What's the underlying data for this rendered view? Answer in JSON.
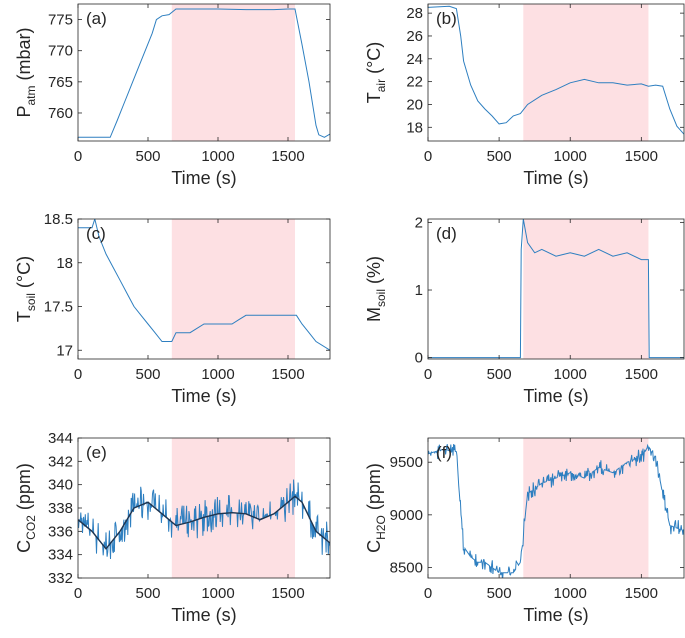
{
  "figure": {
    "panel_labels": [
      "(a)",
      "(b)",
      "(c)",
      "(d)",
      "(e)",
      "(f)"
    ],
    "xlabel": "Time (s)",
    "shaded_interval": [
      670,
      1550
    ],
    "colors": {
      "line": "#2e7fc0",
      "smooth": "#1f3550",
      "shade": "#fde0e3",
      "axis": "#262626"
    }
  },
  "chart_data": [
    {
      "type": "line",
      "panel": "(a)",
      "ylabel": {
        "base": "P",
        "sub": "atm",
        "unit": " (mbar)"
      },
      "xlabel": "Time (s)",
      "xlim": [
        0,
        1800
      ],
      "ylim": [
        755.5,
        777.5
      ],
      "xticks": [
        0,
        500,
        1000,
        1500
      ],
      "yticks": [
        760,
        765,
        770,
        775
      ],
      "shaded": [
        670,
        1550
      ],
      "grid": false,
      "series": [
        {
          "x": [
            0,
            230,
            280,
            330,
            380,
            430,
            480,
            530,
            560,
            600,
            650,
            700,
            800,
            1000,
            1200,
            1400,
            1500,
            1550,
            1600,
            1650,
            1700,
            1720,
            1760,
            1800
          ],
          "y": [
            756.1,
            756.1,
            758.8,
            761.6,
            764.4,
            767.2,
            770,
            772.8,
            775,
            775.6,
            775.8,
            776.7,
            776.7,
            776.7,
            776.6,
            776.6,
            776.7,
            776.7,
            771,
            765,
            758,
            756.5,
            756.1,
            756.6
          ]
        }
      ]
    },
    {
      "type": "line",
      "panel": "(b)",
      "ylabel": {
        "base": "T",
        "sub": "air",
        "unit": " (°C)"
      },
      "xlabel": "Time (s)",
      "xlim": [
        0,
        1800
      ],
      "ylim": [
        16.8,
        28.8
      ],
      "xticks": [
        0,
        500,
        1000,
        1500
      ],
      "yticks": [
        18,
        20,
        22,
        24,
        26,
        28
      ],
      "shaded": [
        670,
        1550
      ],
      "grid": false,
      "series": [
        {
          "x": [
            0,
            150,
            200,
            230,
            250,
            300,
            350,
            400,
            450,
            500,
            550,
            600,
            650,
            700,
            800,
            900,
            1000,
            1100,
            1200,
            1300,
            1400,
            1500,
            1550,
            1600,
            1650,
            1700,
            1750,
            1800
          ],
          "y": [
            28.5,
            28.6,
            28.4,
            26,
            23.8,
            21.7,
            20.3,
            19.6,
            19,
            18.3,
            18.4,
            19,
            19.2,
            20,
            20.8,
            21.3,
            21.9,
            22.2,
            21.9,
            21.9,
            21.7,
            21.8,
            21.6,
            21.7,
            21.6,
            19.6,
            18.1,
            17.4
          ]
        }
      ]
    },
    {
      "type": "line",
      "panel": "(c)",
      "ylabel": {
        "base": "T",
        "sub": "soil",
        "unit": " (°C)"
      },
      "xlabel": "Time (s)",
      "xlim": [
        0,
        1800
      ],
      "ylim": [
        16.9,
        18.5
      ],
      "xticks": [
        0,
        500,
        1000,
        1500
      ],
      "yticks": [
        17,
        17.5,
        18,
        18.5
      ],
      "shaded": [
        670,
        1550
      ],
      "grid": false,
      "series": [
        {
          "x": [
            0,
            100,
            120,
            150,
            200,
            250,
            300,
            350,
            400,
            450,
            500,
            550,
            600,
            670,
            700,
            800,
            900,
            1000,
            1100,
            1150,
            1200,
            1300,
            1400,
            1500,
            1560,
            1600,
            1650,
            1700,
            1800
          ],
          "y": [
            18.4,
            18.4,
            18.5,
            18.3,
            18.1,
            17.95,
            17.8,
            17.65,
            17.5,
            17.4,
            17.3,
            17.2,
            17.1,
            17.1,
            17.2,
            17.2,
            17.3,
            17.3,
            17.3,
            17.35,
            17.4,
            17.4,
            17.4,
            17.4,
            17.4,
            17.3,
            17.2,
            17.1,
            17
          ]
        }
      ]
    },
    {
      "type": "line",
      "panel": "(d)",
      "ylabel": {
        "base": "M",
        "sub": "soil",
        "unit": " (%)"
      },
      "xlabel": "Time (s)",
      "xlim": [
        0,
        1800
      ],
      "ylim": [
        -0.02,
        2.05
      ],
      "xticks": [
        0,
        500,
        1000,
        1500
      ],
      "yticks": [
        0,
        1,
        2
      ],
      "shaded": [
        670,
        1550
      ],
      "grid": false,
      "series": [
        {
          "x": [
            0,
            300,
            600,
            650,
            655,
            670,
            700,
            750,
            800,
            900,
            1000,
            1100,
            1200,
            1300,
            1400,
            1500,
            1550,
            1555,
            1600,
            1800
          ],
          "y": [
            0,
            0,
            0,
            0,
            1.6,
            2.05,
            1.7,
            1.55,
            1.6,
            1.5,
            1.55,
            1.5,
            1.6,
            1.5,
            1.55,
            1.45,
            1.45,
            0,
            0,
            0
          ]
        }
      ]
    },
    {
      "type": "line",
      "panel": "(e)",
      "ylabel": {
        "base": "C",
        "sub": "CO2",
        "unit": " (ppm)"
      },
      "xlabel": "Time (s)",
      "xlim": [
        0,
        1800
      ],
      "ylim": [
        332,
        344
      ],
      "xticks": [
        0,
        500,
        1000,
        1500
      ],
      "yticks": [
        332,
        334,
        336,
        338,
        340,
        342,
        344
      ],
      "shaded": [
        670,
        1550
      ],
      "grid": false,
      "series": [
        {
          "name": "raw",
          "noise": 1.6,
          "x": [
            0,
            100,
            200,
            300,
            400,
            500,
            600,
            700,
            800,
            900,
            1000,
            1100,
            1200,
            1300,
            1400,
            1500,
            1550,
            1600,
            1700,
            1800
          ],
          "y": [
            337,
            336,
            334.5,
            336,
            338,
            338.5,
            337.5,
            336.5,
            336.8,
            337.2,
            337.5,
            337.6,
            337.5,
            337,
            337.5,
            338.5,
            339,
            338.5,
            336,
            335
          ]
        },
        {
          "name": "smoothed",
          "x": [
            0,
            100,
            200,
            300,
            400,
            500,
            600,
            700,
            800,
            900,
            1000,
            1100,
            1200,
            1300,
            1400,
            1500,
            1550,
            1600,
            1700,
            1800
          ],
          "y": [
            337,
            336,
            334.5,
            336,
            338,
            338.5,
            337.5,
            336.5,
            336.8,
            337.2,
            337.5,
            337.6,
            337.5,
            337,
            337.5,
            338.5,
            339,
            338.5,
            336,
            335
          ]
        }
      ]
    },
    {
      "type": "line",
      "panel": "(f)",
      "ylabel": {
        "base": "C",
        "sub": "H2O",
        "unit": " (ppm)"
      },
      "xlabel": "Time (s)",
      "xlim": [
        0,
        1800
      ],
      "ylim": [
        8400,
        9730
      ],
      "xticks": [
        0,
        500,
        1000,
        1500
      ],
      "yticks": [
        8500,
        9000,
        9500
      ],
      "shaded": [
        670,
        1550
      ],
      "grid": false,
      "series": [
        {
          "noise": 80,
          "x": [
            0,
            100,
            200,
            220,
            250,
            300,
            350,
            400,
            450,
            500,
            550,
            600,
            650,
            700,
            800,
            900,
            1000,
            1100,
            1200,
            1300,
            1400,
            1500,
            1550,
            1600,
            1650,
            1700,
            1800
          ],
          "y": [
            9580,
            9620,
            9600,
            9200,
            8700,
            8600,
            8550,
            8550,
            8500,
            8450,
            8450,
            8450,
            8550,
            9200,
            9300,
            9350,
            9400,
            9350,
            9450,
            9400,
            9500,
            9550,
            9650,
            9550,
            9200,
            8900,
            8850
          ]
        }
      ]
    }
  ]
}
